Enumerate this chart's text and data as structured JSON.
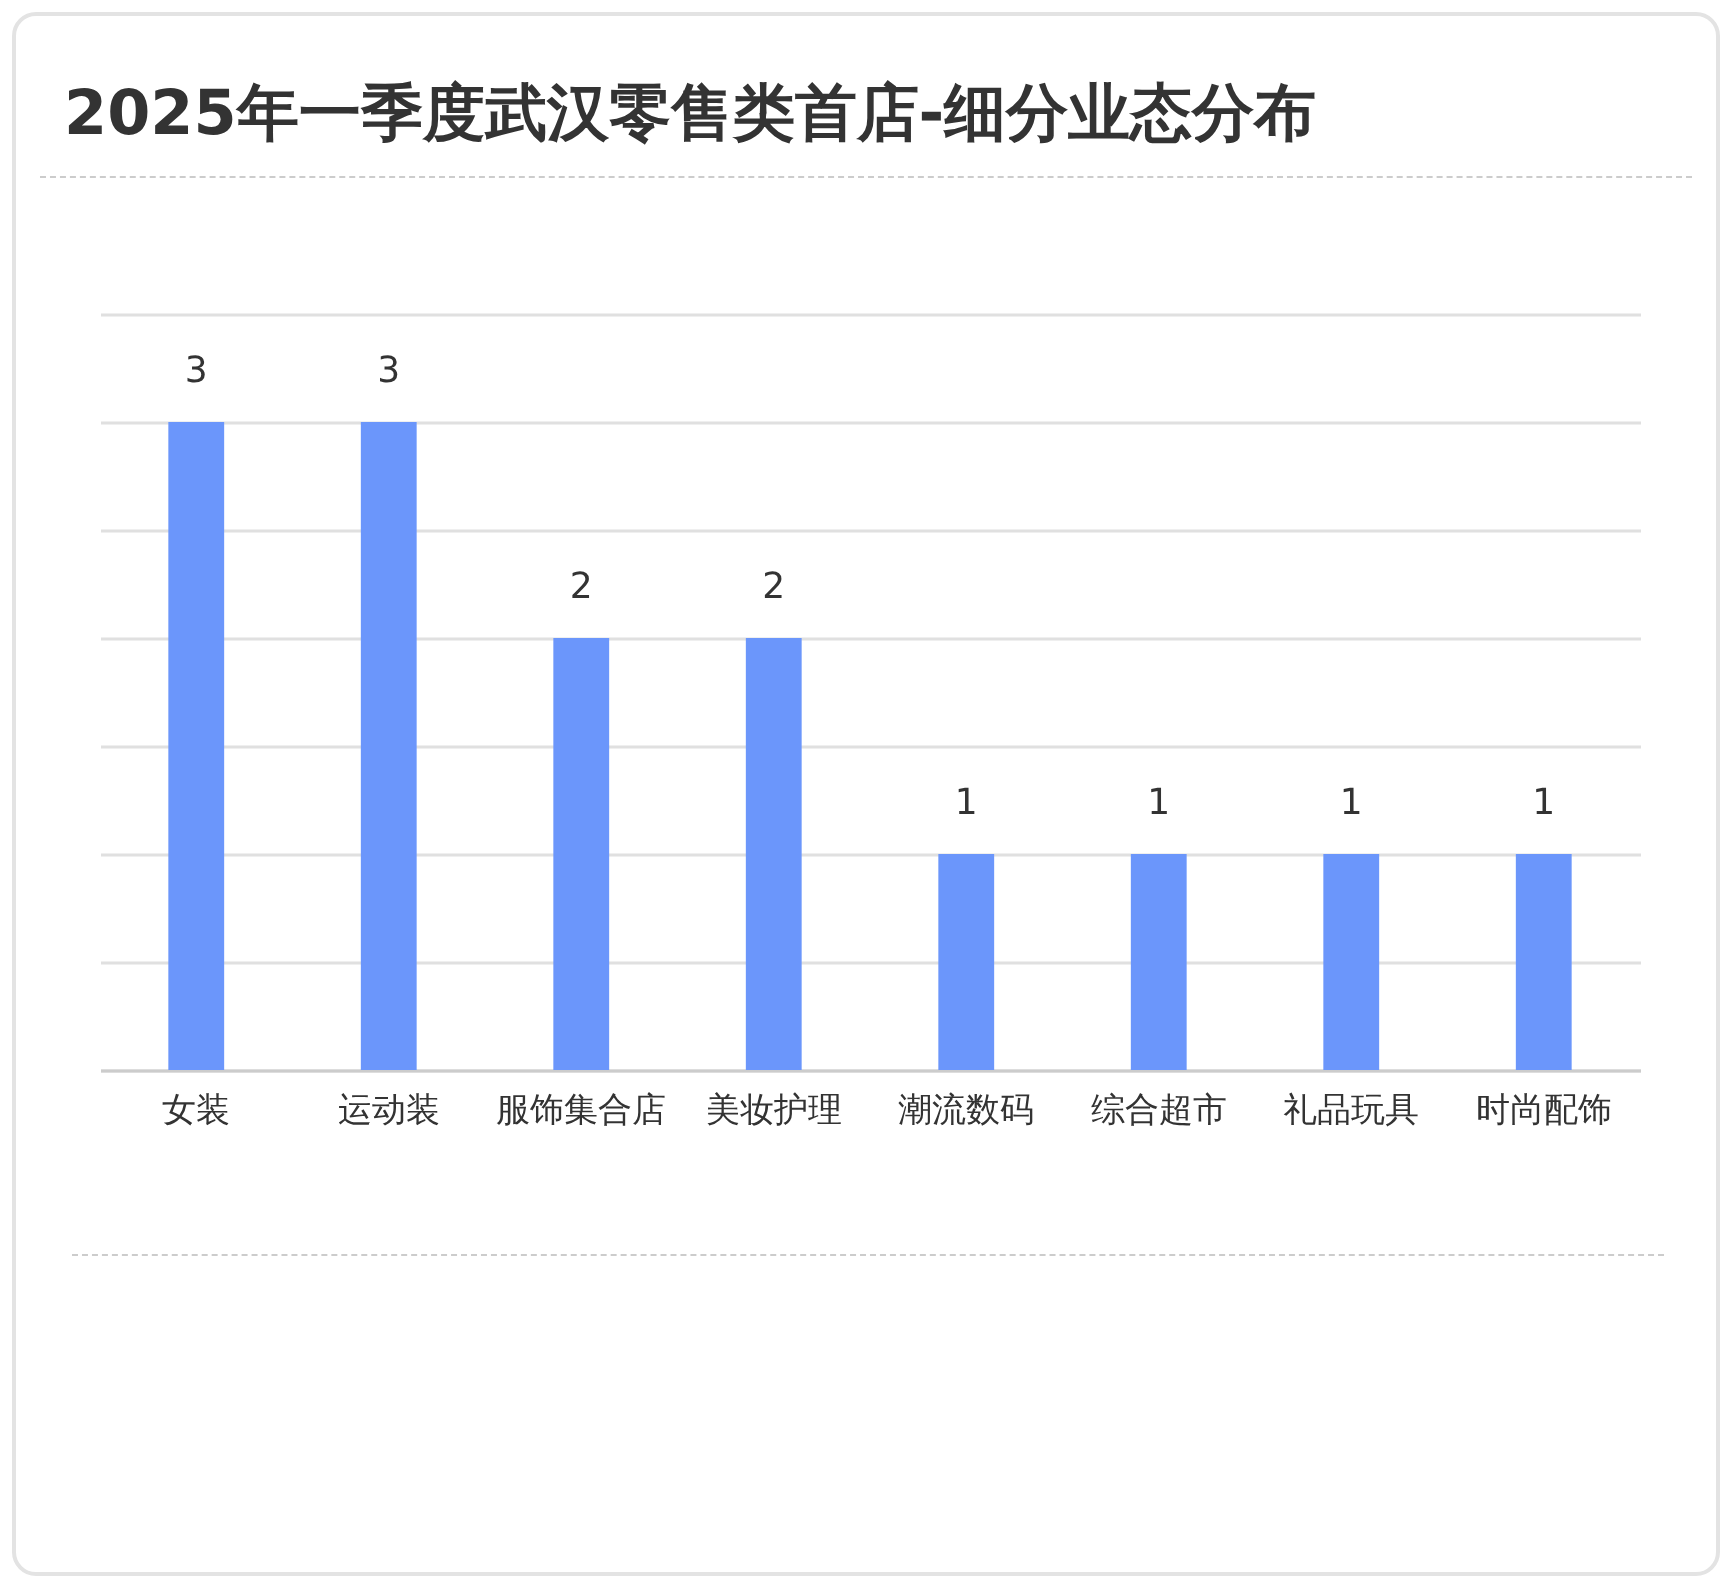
{
  "chart_data": {
    "type": "bar",
    "title": "2025年一季度武汉零售类首店-细分业态分布",
    "categories": [
      "女装",
      "运动装",
      "服饰集合店",
      "美妆护理",
      "潮流数码",
      "综合超市",
      "礼品玩具",
      "时尚配饰"
    ],
    "values": [
      3,
      3,
      2,
      2,
      1,
      1,
      1,
      1
    ],
    "color": "#6b96fb",
    "ylim": [
      0,
      3.5
    ],
    "yticks": [
      {
        "value": 0,
        "label": null
      },
      {
        "value": 0.5,
        "label": null
      },
      {
        "value": 1,
        "label": null
      },
      {
        "value": 1.5,
        "label": null
      },
      {
        "value": 2,
        "label": null
      },
      {
        "value": 2.5,
        "label": null
      },
      {
        "value": 3,
        "label": null
      },
      {
        "value": 3.5,
        "label": null
      }
    ],
    "grid": "y",
    "tick_labels": "x",
    "data_labels": true
  }
}
